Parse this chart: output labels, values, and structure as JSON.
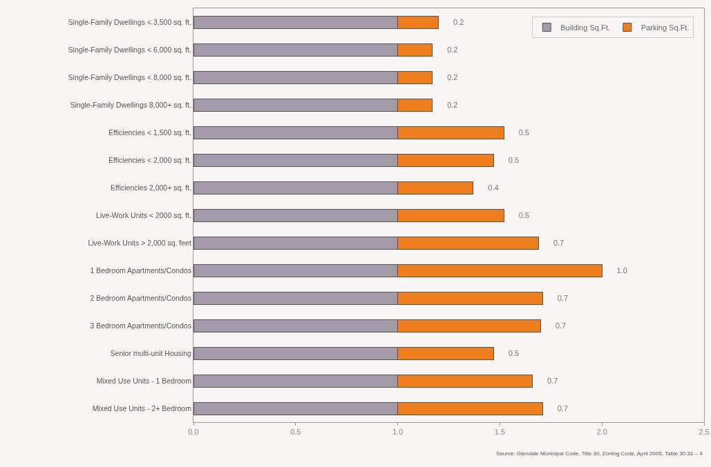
{
  "chart_data": {
    "type": "bar",
    "orientation": "horizontal",
    "stacked": true,
    "categories": [
      "Single-Family Dwellings < 3,500 sq. ft.",
      "Single-Family Dwellings < 6,000 sq. ft.",
      "Single-Family Dwellings < 8,000 sq. ft.",
      "Single-Family Dwellings 8,000+ sq. ft.",
      "Efficiencies < 1,500 sq. ft.",
      "Efficiencies < 2,000 sq. ft.",
      "Efficiencies 2,000+ sq. ft.",
      "Live-Work Units < 2000 sq. ft.",
      "Live-Work Units > 2,000 sq. feet",
      "1 Bedroom Apartments/Condos",
      "2 Bedroom Apartments/Condos",
      "3 Bedroom Apartments/Condos",
      "Senior multi-unit Housing",
      "Mixed Use Units - 1 Bedroom",
      "Mixed Use Units - 2+ Bedroom"
    ],
    "series": [
      {
        "name": "Building Sq.Ft.",
        "color": "#a59aa8",
        "values": [
          1,
          1,
          1,
          1,
          1,
          1,
          1,
          1,
          1,
          1,
          1,
          1,
          1,
          1,
          1
        ]
      },
      {
        "name": "Parking Sq.Ft.",
        "color": "#ee7d1e",
        "values": [
          0.2,
          0.17,
          0.17,
          0.17,
          0.52,
          0.47,
          0.37,
          0.52,
          0.69,
          1.0,
          0.71,
          0.7,
          0.47,
          0.66,
          0.71
        ],
        "value_labels": [
          "0.2",
          "0.2",
          "0.2",
          "0.2",
          "0.5",
          "0.5",
          "0.4",
          "0.5",
          "0.7",
          "1.0",
          "0.7",
          "0.7",
          "0.5",
          "0.7",
          "0.7"
        ]
      }
    ],
    "xlim": [
      0,
      2.5
    ],
    "xticks": [
      {
        "value": 0,
        "label": "0.0"
      },
      0.5,
      {
        "value": 1,
        "label": "1.0"
      },
      1.5,
      {
        "value": 2,
        "label": "2.0"
      },
      2.5
    ],
    "grid": false,
    "legend": "top right",
    "annotations": [
      "Source: Glendale Municipal Code, Title 30, Zoning Code, April 2005, Table 30.32 – 4"
    ]
  }
}
